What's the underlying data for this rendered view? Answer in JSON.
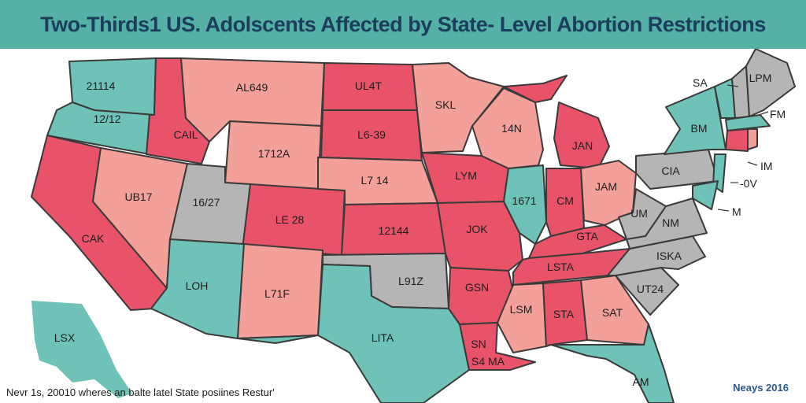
{
  "title": "Two-Thirds1 US. Adolscents Affected by State- Level Abortion Restrictions",
  "colors": {
    "restricted": "#e8536a",
    "partial": "#f4a09a",
    "protected": "#6fc2b7",
    "no_data": "#b5b5b5",
    "title_bar": "#55b0a6"
  },
  "states": {
    "wa": "21114",
    "or": "12/12",
    "ca": "CAK",
    "id": "CAIL",
    "nv": "UB17",
    "mt": "AL649",
    "wy": "1712A",
    "ut": "16/27",
    "co": "LE 28",
    "az": "LOH",
    "nm": "L71F",
    "nd": "UL4T",
    "sd": "L6-39",
    "ne": "L7 14",
    "ks": "12144",
    "ok": "L91Z",
    "tx": "LITA",
    "mn": "SKL",
    "ia": "LYM",
    "mo": "JOK",
    "ar": "GSN",
    "la": "SN",
    "la2": "S4 MA",
    "wi": "14N",
    "il": "1671",
    "mi": "JAN",
    "in": "CM",
    "oh": "JAM",
    "ky": "GTA",
    "tn": "LSTA",
    "ms": "LSM",
    "al": "STA",
    "ga": "SAT",
    "fl": "AM",
    "sc": "UT24",
    "nc": "ISKA",
    "va": "NM",
    "wv": "UM",
    "pa": "CIA",
    "ny": "BM",
    "me": "LPM",
    "ak": "LSX"
  },
  "outside_labels": {
    "sa": "SA",
    "fm": "FM",
    "im": "IM",
    "ov": "-0V",
    "m": "M"
  },
  "footnote": "Nevr 1s, 20010 wheres an balte latel State posiines Restur'",
  "source": "Neays 2016"
}
